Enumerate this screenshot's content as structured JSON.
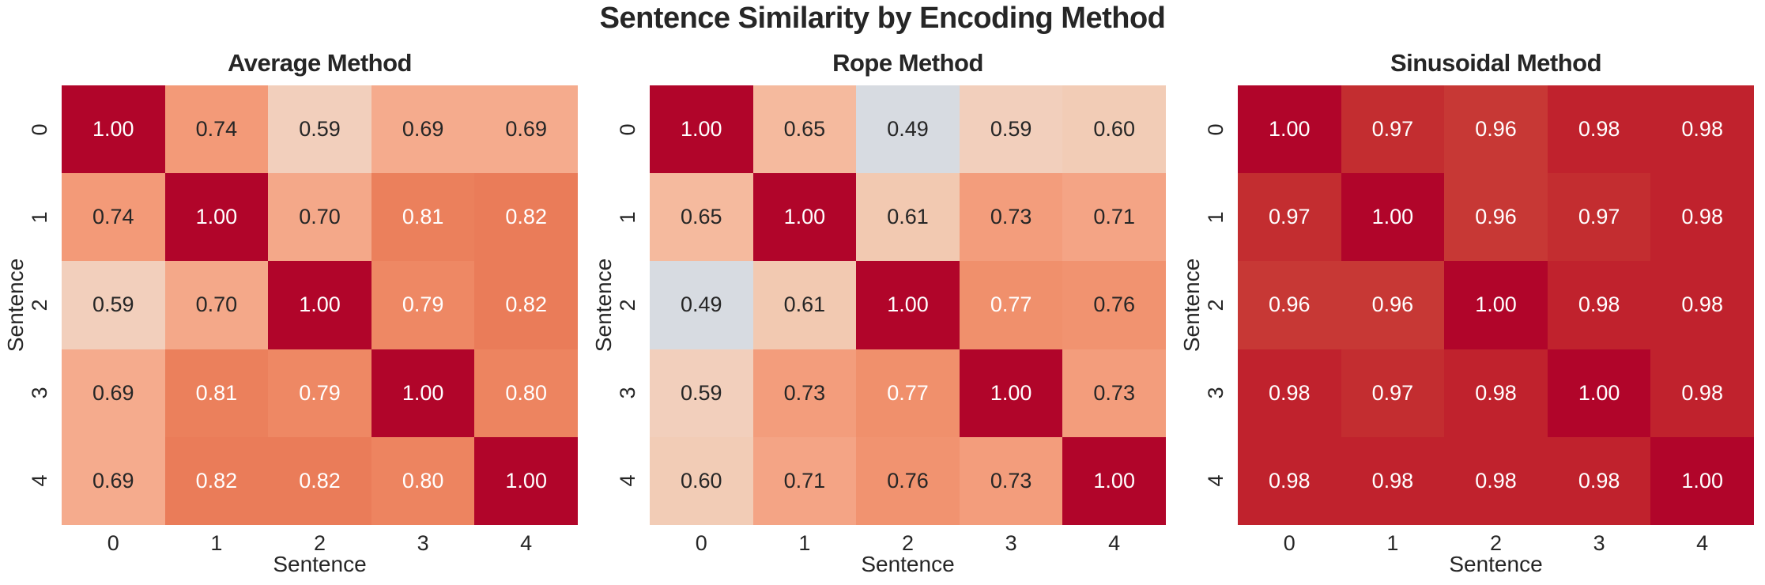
{
  "figure": {
    "title": "Sentence Similarity by Encoding Method",
    "background": "#ffffff",
    "text_color": "#262626"
  },
  "chart_data": [
    {
      "type": "heatmap",
      "title": "Average Method",
      "xlabel": "Sentence",
      "ylabel": "Sentence",
      "x_ticks": [
        "0",
        "1",
        "2",
        "3",
        "4"
      ],
      "y_ticks": [
        "0",
        "1",
        "2",
        "3",
        "4"
      ],
      "matrix": [
        [
          "1.00",
          "0.74",
          "0.59",
          "0.69",
          "0.69"
        ],
        [
          "0.74",
          "1.00",
          "0.70",
          "0.81",
          "0.82"
        ],
        [
          "0.59",
          "0.70",
          "1.00",
          "0.79",
          "0.82"
        ],
        [
          "0.69",
          "0.81",
          "0.79",
          "1.00",
          "0.80"
        ],
        [
          "0.69",
          "0.82",
          "0.82",
          "0.80",
          "1.00"
        ]
      ],
      "colormap": "coolwarm",
      "vmin": 0,
      "vmax": 1,
      "legend": "none",
      "grid": false
    },
    {
      "type": "heatmap",
      "title": "Rope Method",
      "xlabel": "Sentence",
      "ylabel": "Sentence",
      "x_ticks": [
        "0",
        "1",
        "2",
        "3",
        "4"
      ],
      "y_ticks": [
        "0",
        "1",
        "2",
        "3",
        "4"
      ],
      "matrix": [
        [
          "1.00",
          "0.65",
          "0.49",
          "0.59",
          "0.60"
        ],
        [
          "0.65",
          "1.00",
          "0.61",
          "0.73",
          "0.71"
        ],
        [
          "0.49",
          "0.61",
          "1.00",
          "0.77",
          "0.76"
        ],
        [
          "0.59",
          "0.73",
          "0.77",
          "1.00",
          "0.73"
        ],
        [
          "0.60",
          "0.71",
          "0.76",
          "0.73",
          "1.00"
        ]
      ],
      "colormap": "coolwarm",
      "vmin": 0,
      "vmax": 1,
      "legend": "none",
      "grid": false
    },
    {
      "type": "heatmap",
      "title": "Sinusoidal Method",
      "xlabel": "Sentence",
      "ylabel": "Sentence",
      "x_ticks": [
        "0",
        "1",
        "2",
        "3",
        "4"
      ],
      "y_ticks": [
        "0",
        "1",
        "2",
        "3",
        "4"
      ],
      "matrix": [
        [
          "1.00",
          "0.97",
          "0.96",
          "0.98",
          "0.98"
        ],
        [
          "0.97",
          "1.00",
          "0.96",
          "0.97",
          "0.98"
        ],
        [
          "0.96",
          "0.96",
          "1.00",
          "0.98",
          "0.98"
        ],
        [
          "0.98",
          "0.97",
          "0.98",
          "1.00",
          "0.98"
        ],
        [
          "0.98",
          "0.98",
          "0.98",
          "0.98",
          "1.00"
        ]
      ],
      "colormap": "coolwarm",
      "vmin": 0,
      "vmax": 1,
      "legend": "none",
      "grid": false
    }
  ],
  "style": {
    "value_colors": {
      "0.49": "#d7dbe1",
      "0.59": "#f2cfbc",
      "0.60": "#f2ccb6",
      "0.61": "#f2c9b1",
      "0.65": "#f5ba9e",
      "0.69": "#f5ab8d",
      "0.70": "#f4a889",
      "0.71": "#f4a485",
      "0.73": "#f39d7c",
      "0.74": "#f39a78",
      "0.76": "#f19370",
      "0.77": "#f0906c",
      "0.79": "#ee8864",
      "0.80": "#ed8460",
      "0.81": "#eb805c",
      "0.82": "#ea7c59",
      "0.96": "#c73835",
      "0.97": "#c32d30",
      "0.98": "#c0222d",
      "1.00": "#b1052a"
    },
    "white_text_threshold": 0.77,
    "annot_text_light": "#ffffff",
    "annot_text_dark": "#262626"
  }
}
